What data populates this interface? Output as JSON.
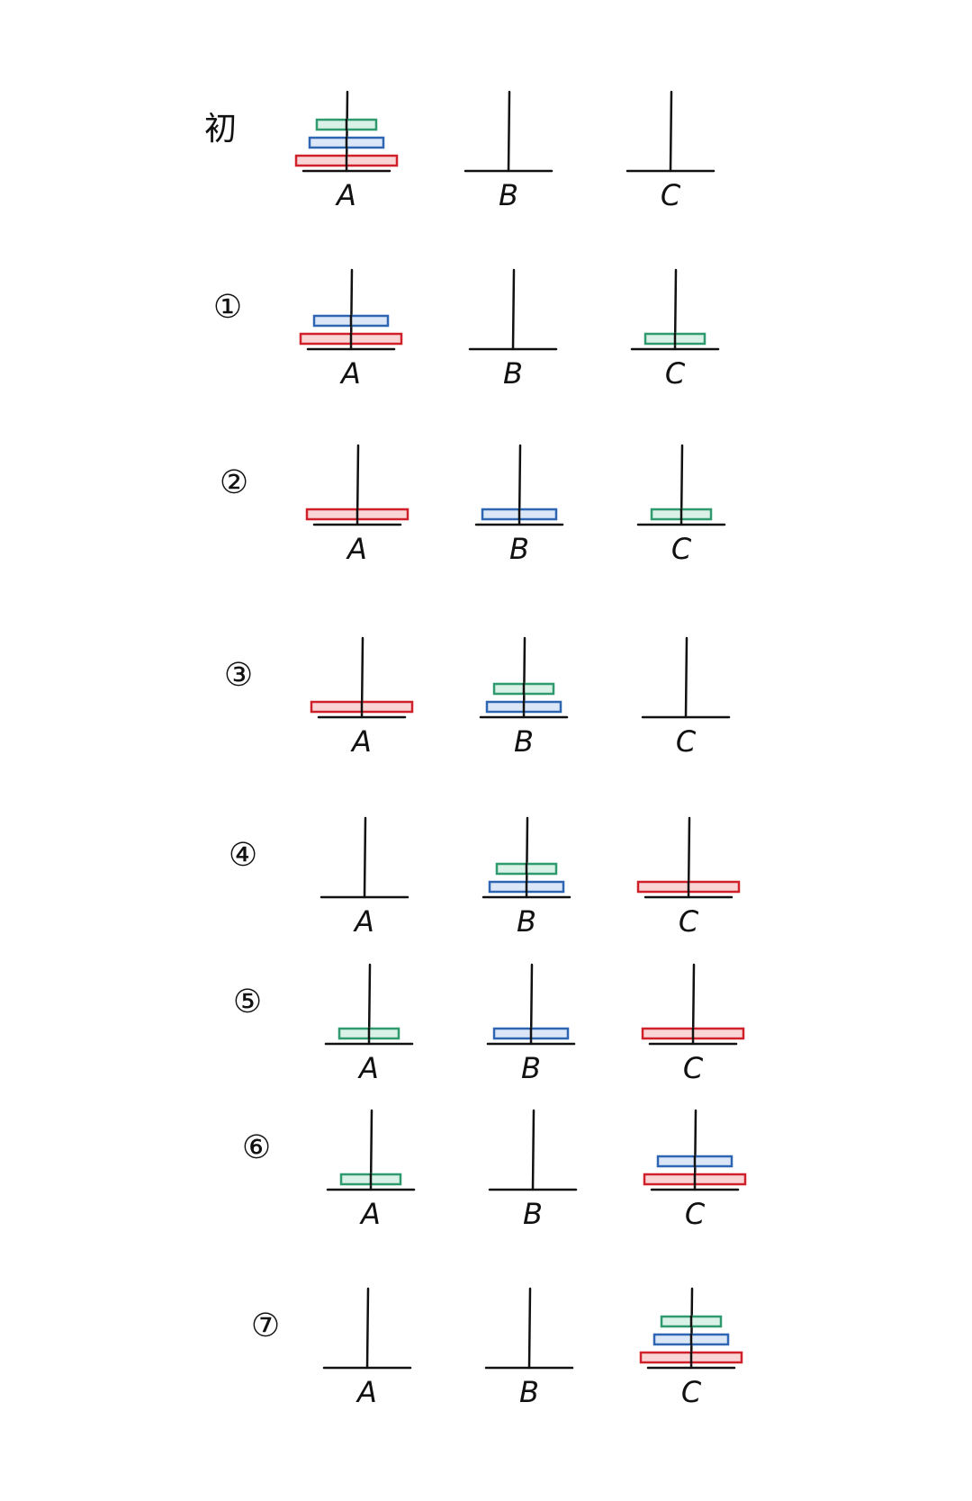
{
  "diagram": {
    "peg_names": [
      "A",
      "B",
      "C"
    ],
    "disks": {
      "small": {
        "color": "#2e9a6e",
        "fill": "#d9f1e6"
      },
      "medium": {
        "color": "#2f66b3",
        "fill": "#dbe7f6"
      },
      "large": {
        "color": "#d0202a",
        "fill": "#f9d5d6"
      }
    },
    "stages": [
      {
        "label": "初",
        "pegs": {
          "A": [
            "large",
            "medium",
            "small"
          ],
          "B": [],
          "C": []
        }
      },
      {
        "label": "①",
        "pegs": {
          "A": [
            "large",
            "medium"
          ],
          "B": [],
          "C": [
            "small"
          ]
        }
      },
      {
        "label": "②",
        "pegs": {
          "A": [
            "large"
          ],
          "B": [
            "medium"
          ],
          "C": [
            "small"
          ]
        }
      },
      {
        "label": "③",
        "pegs": {
          "A": [
            "large"
          ],
          "B": [
            "medium",
            "small"
          ],
          "C": []
        }
      },
      {
        "label": "④",
        "pegs": {
          "A": [],
          "B": [
            "medium",
            "small"
          ],
          "C": [
            "large"
          ]
        }
      },
      {
        "label": "⑤",
        "pegs": {
          "A": [
            "small"
          ],
          "B": [
            "medium"
          ],
          "C": [
            "large"
          ]
        }
      },
      {
        "label": "⑥",
        "pegs": {
          "A": [
            "small"
          ],
          "B": [],
          "C": [
            "large",
            "medium"
          ]
        }
      },
      {
        "label": "⑦",
        "pegs": {
          "A": [],
          "B": [],
          "C": [
            "large",
            "medium",
            "small"
          ]
        }
      }
    ]
  }
}
